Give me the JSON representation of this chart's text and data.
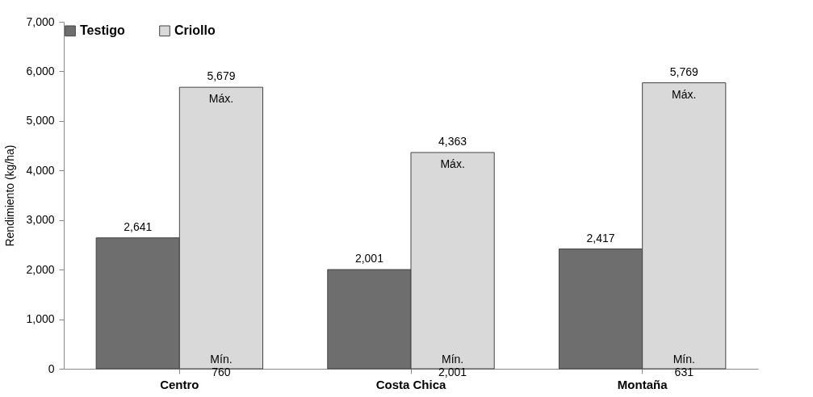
{
  "chart_data": {
    "type": "bar",
    "ylabel": "Rendimiento (kg/ha)",
    "categories": [
      "Centro",
      "Costa Chica",
      "Montaña"
    ],
    "series": [
      {
        "name": "Testigo",
        "color": "#6e6e6e",
        "values": [
          2641,
          2001,
          2417
        ],
        "value_labels": [
          "2,641",
          "2,001",
          "2,417"
        ]
      },
      {
        "name": "Criollo",
        "color": "#d9d9d9",
        "values": [
          5679,
          4363,
          5769
        ],
        "value_labels": [
          "5,679",
          "4,363",
          "5,769"
        ]
      }
    ],
    "ylim": [
      0,
      7000
    ],
    "yticks": [
      0,
      {
        "value": 1000,
        "label": "1,000"
      },
      {
        "value": 2000,
        "label": "2,000"
      },
      {
        "value": 3000,
        "label": "3,000"
      },
      {
        "value": 4000,
        "label": "4,000"
      },
      {
        "value": 5000,
        "label": "5,000"
      },
      {
        "value": 6000,
        "label": "6,000"
      },
      {
        "value": 7000,
        "label": "7,000"
      }
    ],
    "legend": "top",
    "annotations": [
      {
        "text": "Máx.",
        "x": "Centro",
        "y": 5679
      },
      {
        "text": "Máx.",
        "x": "Costa Chica",
        "y": 4363
      },
      {
        "text": "Máx.",
        "x": "Montaña",
        "y": 5769
      },
      {
        "text": "Mín.\n760",
        "x": "Centro",
        "y": 0
      },
      {
        "text": "Mín.\n2,001",
        "x": "Costa Chica",
        "y": 0
      },
      {
        "text": "Mín.\n631",
        "x": "Montaña",
        "y": 0
      }
    ]
  }
}
